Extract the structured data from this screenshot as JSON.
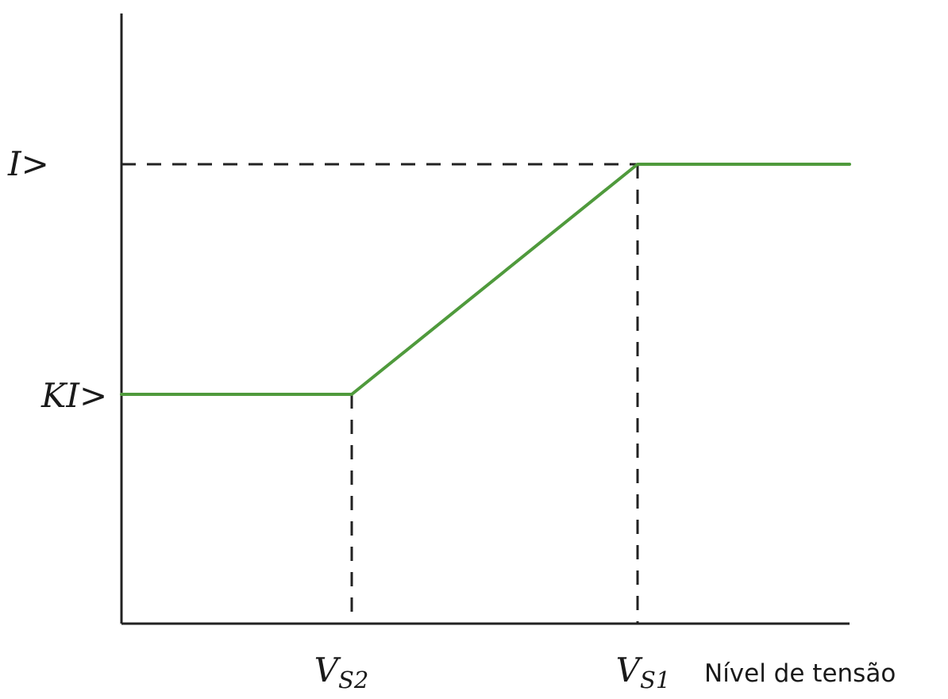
{
  "chart_data": {
    "type": "line",
    "title": "",
    "xlabel": "Nível de tensão",
    "ylabel": "",
    "x_ticks": [
      {
        "key": "vs2",
        "main": "V",
        "sub": "S2"
      },
      {
        "key": "vs1",
        "main": "V",
        "sub": "S1"
      }
    ],
    "y_ticks": [
      {
        "key": "ki",
        "label": "KI>"
      },
      {
        "key": "i",
        "label": "I>"
      }
    ],
    "series": [
      {
        "color": "#4f9a3c",
        "points": [
          {
            "x": "0",
            "y": "KI>"
          },
          {
            "x": "VS2",
            "y": "KI>"
          },
          {
            "x": "VS1",
            "y": "I>"
          },
          {
            "x": "end",
            "y": "I>"
          }
        ]
      }
    ],
    "guides": [
      "horizontal dashed line at I> up to VS1",
      "vertical dashed line at VS2 up to KI>",
      "vertical dashed line at VS1 up to I>"
    ],
    "grid": false,
    "legend": "none"
  }
}
